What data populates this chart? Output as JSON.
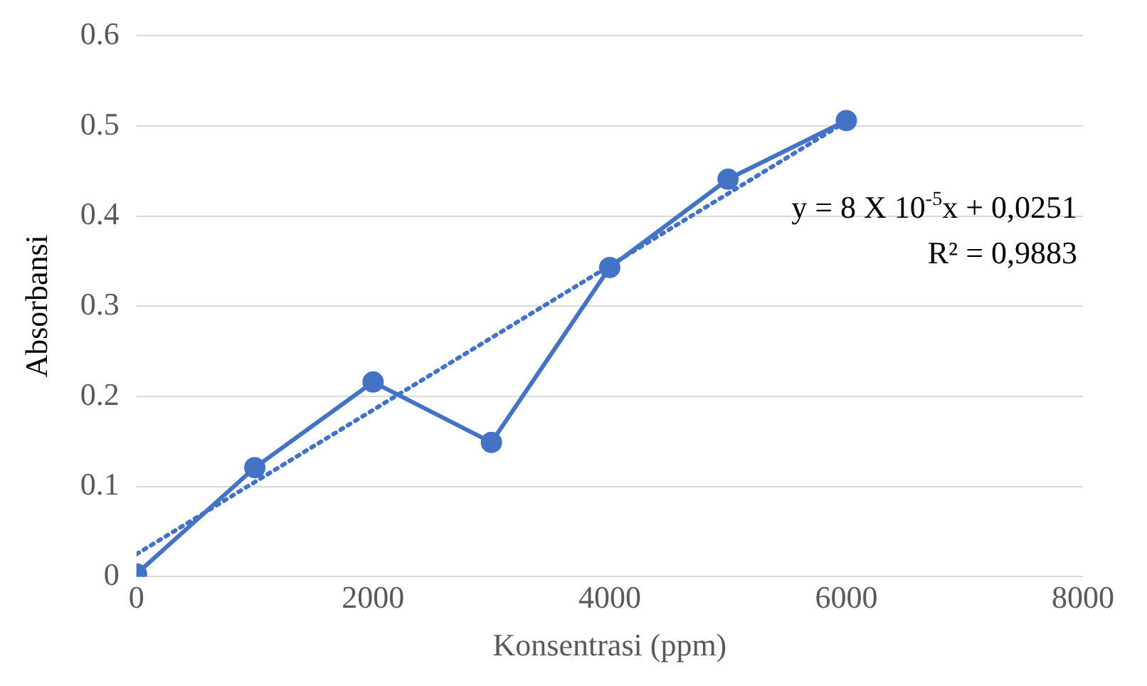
{
  "chart_data": {
    "type": "line",
    "xlabel": "Konsentrasi (ppm)",
    "ylabel": "Absorbansi",
    "x": [
      0,
      1000,
      2000,
      3000,
      4000,
      5000,
      6000
    ],
    "series": [
      {
        "type": "line",
        "color": "#4472c4",
        "values": [
          0.003,
          0.121,
          0.216,
          0.149,
          0.343,
          0.441,
          0.506
        ],
        "marker": "circle",
        "line_style": "solid"
      },
      {
        "type": "line",
        "color": "#4472c4",
        "x": [
          0,
          6000
        ],
        "values": [
          0.025,
          0.505
        ],
        "marker": "none",
        "line_style": "dotted"
      }
    ],
    "xlim": [
      0,
      8000
    ],
    "xticks": [
      0,
      2000,
      4000,
      6000,
      8000
    ],
    "ylim": [
      0,
      0.6
    ],
    "yticks": [
      0,
      0.1,
      0.2,
      0.3,
      0.4,
      0.5,
      0.6
    ],
    "grid": "y",
    "legend": false,
    "annotations": [
      "y = 8 X 10$^{-5}$x + 0,0251",
      "R² = 0,9883"
    ]
  }
}
